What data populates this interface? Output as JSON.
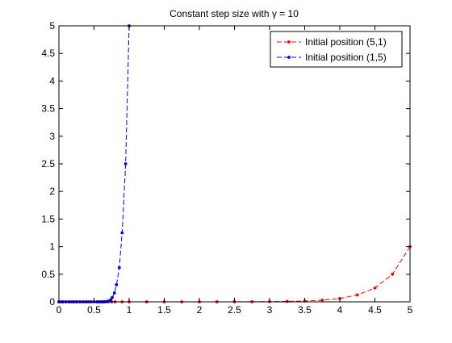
{
  "chart_data": {
    "type": "line",
    "title": "Constant step size with γ = 10",
    "xlabel": "",
    "ylabel": "",
    "xlim": [
      0,
      5
    ],
    "ylim": [
      0,
      5
    ],
    "xticks": [
      "0",
      "0.5",
      "1",
      "1.5",
      "2",
      "2.5",
      "3",
      "3.5",
      "4",
      "4.5",
      "5"
    ],
    "yticks": [
      "0",
      "0.5",
      "1",
      "1.5",
      "2",
      "2.5",
      "3",
      "3.5",
      "4",
      "4.5",
      "5"
    ],
    "grid": false,
    "legend_position": "top-right",
    "series": [
      {
        "name": "Initial position (5,1)",
        "color": "#ff0000",
        "line_style": "dashed",
        "marker": "dot",
        "x": [
          5,
          4.75,
          4.5,
          4.25,
          4,
          3.75,
          3.5,
          3.25,
          3,
          2.75,
          2.5,
          2.25,
          2,
          1.75,
          1.5,
          1.25,
          1,
          0.9,
          0.8,
          0.75,
          0.7,
          0.65,
          0.6,
          0.55,
          0.5,
          0.45,
          0.4,
          0.35,
          0.3,
          0.25,
          0.2,
          0.15,
          0.1,
          0.05,
          0
        ],
        "y": [
          1,
          0.5,
          0.25,
          0.125,
          0.06,
          0.03,
          0.015,
          0.008,
          0.004,
          0.002,
          0.001,
          0.0005,
          0,
          0,
          0,
          0,
          0,
          0,
          0,
          0,
          0,
          0,
          0,
          0,
          0,
          0,
          0,
          0,
          0,
          0,
          0,
          0,
          0,
          0,
          0
        ]
      },
      {
        "name": "Initial position (1,5)",
        "color": "#0000ff",
        "line_style": "dashed",
        "marker": "dot",
        "x": [
          1,
          0.95,
          0.9,
          0.86,
          0.82,
          0.79,
          0.76,
          0.74,
          0.72,
          0.7,
          0.68,
          0.66,
          0.64,
          0.62,
          0.6,
          0.57,
          0.54,
          0.5,
          0.46,
          0.42,
          0.38,
          0.34,
          0.3,
          0.26,
          0.22,
          0.18,
          0.14,
          0.1,
          0.06,
          0.03,
          0
        ],
        "y": [
          5,
          2.5,
          1.25,
          0.62,
          0.31,
          0.16,
          0.08,
          0.04,
          0.02,
          0.01,
          0.005,
          0.003,
          0.001,
          0,
          0,
          0,
          0,
          0,
          0,
          0,
          0,
          0,
          0,
          0,
          0,
          0,
          0,
          0,
          0,
          0,
          0
        ]
      }
    ]
  }
}
